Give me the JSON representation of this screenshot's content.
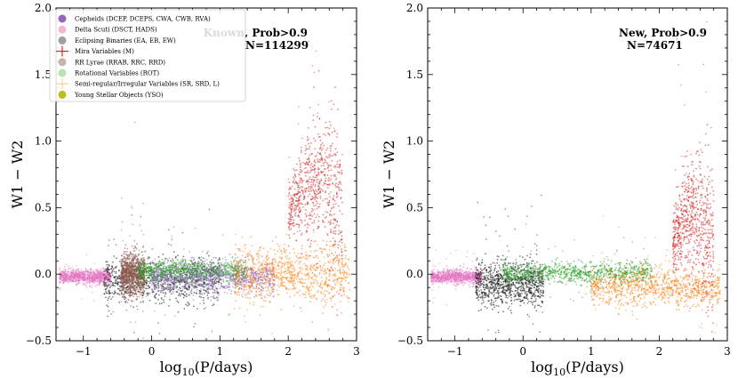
{
  "chart_data": [
    {
      "type": "scatter",
      "panel": "left",
      "xlabel_main": "log",
      "xlabel_sub": "10",
      "xlabel_rest": "(P/days)",
      "ylabel": "W1 − W2",
      "xlim": [
        -1.4,
        3.0
      ],
      "ylim": [
        -0.5,
        2.0
      ],
      "xticks": [
        -1,
        0,
        1,
        2,
        3
      ],
      "xtick_labels": [
        "−1",
        "0",
        "1",
        "2",
        "3"
      ],
      "yticks": [
        -0.5,
        0.0,
        0.5,
        1.0,
        1.5,
        2.0
      ],
      "ytick_labels": [
        "−0.5",
        "0.0",
        "0.5",
        "1.0",
        "1.5",
        "2.0"
      ],
      "annotation_line1": "Known, Prob>0.9",
      "annotation_line2": "N=114299",
      "legend": [
        {
          "label": "Cepheids (DCEP, DCEPS, CWA, CWB, RVA)",
          "color": "#9467bd",
          "marker": "circle"
        },
        {
          "label": "Delta Scuti (DSCT, HADS)",
          "color": "#f7b6d2",
          "marker": "circle"
        },
        {
          "label": "Eclipsing Binaries (EA, EB, EW)",
          "color": "#a0a0a0",
          "marker": "circle"
        },
        {
          "label": "Mira Variables (M)",
          "color": "#d62728",
          "marker": "plus"
        },
        {
          "label": "RR Lyrae (RRAB, RRC, RRD)",
          "color": "#c9b3ad",
          "marker": "circle"
        },
        {
          "label": "Rotational Variables (ROT)",
          "color": "#b9e3b0",
          "marker": "circle"
        },
        {
          "label": "Semi-regular/Irregular Variables (SR, SRD, L)",
          "color": "#ffcf99",
          "marker": "plus"
        },
        {
          "label": "Young Stellar Objects (YSO)",
          "color": "#bcbd22",
          "marker": "circle"
        }
      ],
      "clusters": [
        {
          "class": "Delta Scuti",
          "color": "#e377c2",
          "x_range": [
            -1.35,
            -0.6
          ],
          "y_center": -0.02,
          "y_spread": 0.025
        },
        {
          "class": "Eclipsing Binaries",
          "color": "#1a1a1a",
          "x_range": [
            -0.7,
            1.0
          ],
          "y_center": -0.05,
          "y_spread": 0.08
        },
        {
          "class": "RR Lyrae",
          "color": "#8c564b",
          "x_range": [
            -0.45,
            -0.1
          ],
          "y_center": 0.0,
          "y_spread": 0.08
        },
        {
          "class": "Rotational Variables",
          "color": "#2ca02c",
          "x_range": [
            -0.2,
            1.4
          ],
          "y_center": 0.02,
          "y_spread": 0.04
        },
        {
          "class": "Cepheids",
          "color": "#9467bd",
          "x_range": [
            0.0,
            1.8
          ],
          "y_center": -0.03,
          "y_spread": 0.06
        },
        {
          "class": "Semi-regular/Irregular",
          "color": "#ff7f0e",
          "x_range": [
            1.2,
            2.9
          ],
          "y_center": 0.0,
          "y_spread": 0.1
        },
        {
          "class": "Mira Variables",
          "color": "#d62728",
          "x_range": [
            2.0,
            2.8
          ],
          "y_center": 0.45,
          "y_spread": 0.2
        }
      ]
    },
    {
      "type": "scatter",
      "panel": "right",
      "xlabel_main": "log",
      "xlabel_sub": "10",
      "xlabel_rest": "(P/days)",
      "ylabel": "W1 − W2",
      "xlim": [
        -1.4,
        3.0
      ],
      "ylim": [
        -0.5,
        2.0
      ],
      "xticks": [
        -1,
        0,
        1,
        2,
        3
      ],
      "xtick_labels": [
        "−1",
        "0",
        "1",
        "2",
        "3"
      ],
      "yticks": [
        -0.5,
        0.0,
        0.5,
        1.0,
        1.5,
        2.0
      ],
      "ytick_labels": [
        "−0.5",
        "0.0",
        "0.5",
        "1.0",
        "1.5",
        "2.0"
      ],
      "annotation_line1": "New, Prob>0.9",
      "annotation_line2": "N=74671",
      "clusters": [
        {
          "class": "Delta Scuti",
          "color": "#e377c2",
          "x_range": [
            -1.35,
            -0.6
          ],
          "y_center": -0.02,
          "y_spread": 0.025
        },
        {
          "class": "Eclipsing Binaries",
          "color": "#1a1a1a",
          "x_range": [
            -0.7,
            0.3
          ],
          "y_center": -0.07,
          "y_spread": 0.08
        },
        {
          "class": "Rotational Variables",
          "color": "#2ca02c",
          "x_range": [
            -0.3,
            1.9
          ],
          "y_center": 0.01,
          "y_spread": 0.04
        },
        {
          "class": "Semi-regular/Irregular",
          "color": "#ff7f0e",
          "x_range": [
            1.0,
            2.9
          ],
          "y_center": -0.1,
          "y_spread": 0.07
        },
        {
          "class": "Mira Variables",
          "color": "#d62728",
          "x_range": [
            2.2,
            2.8
          ],
          "y_center": 0.2,
          "y_spread": 0.2
        }
      ]
    }
  ]
}
